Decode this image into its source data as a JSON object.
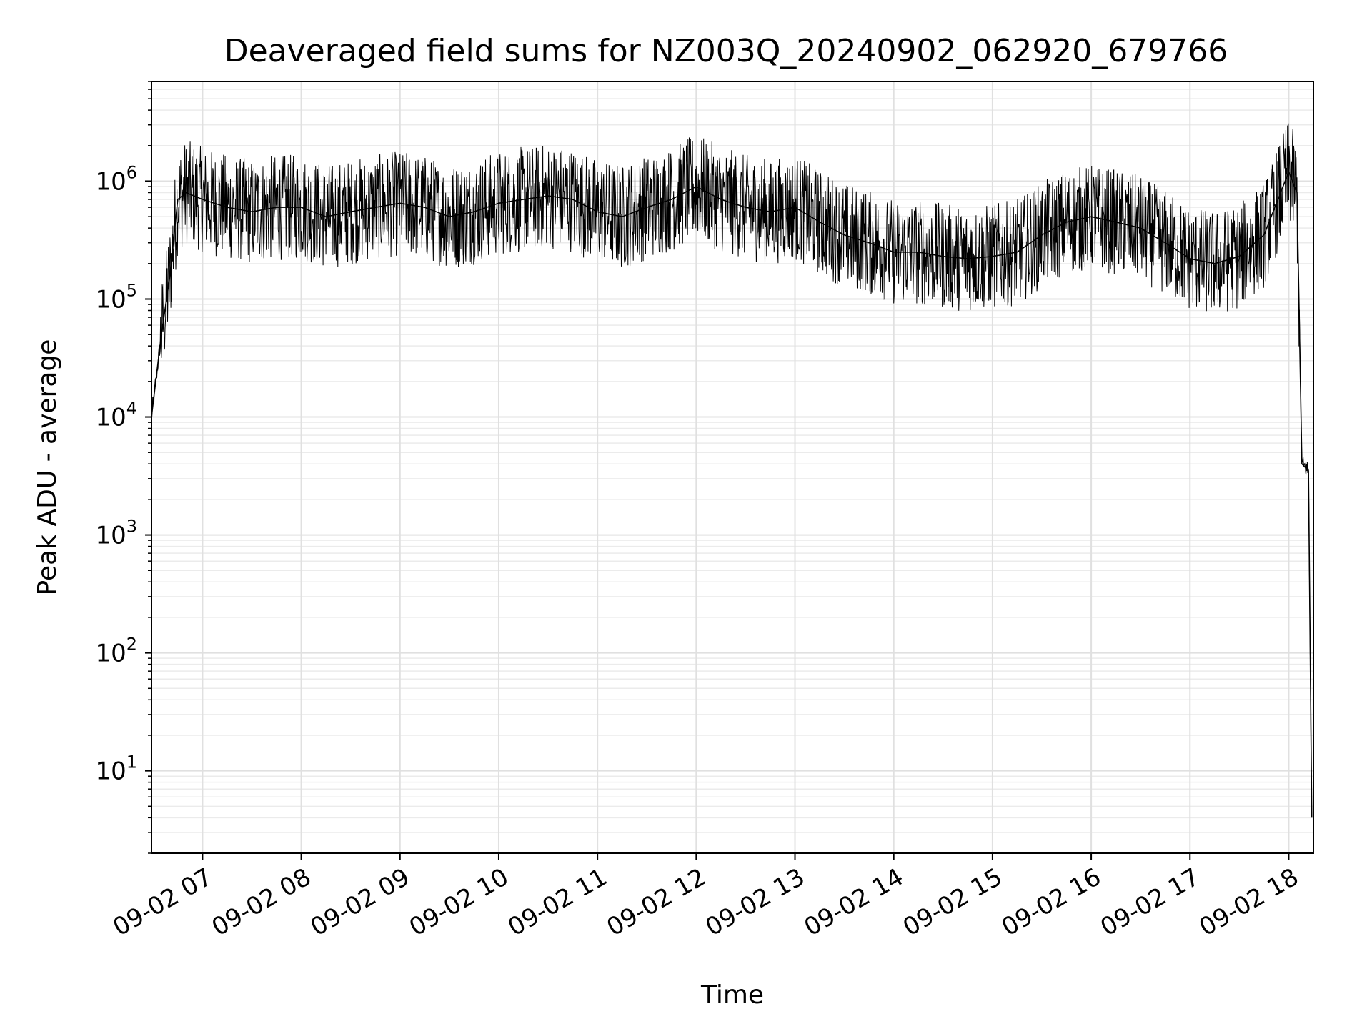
{
  "chart_data": {
    "type": "line",
    "title": "Deaveraged field sums for NZ003Q_20240902_062920_679766",
    "xlabel": "Time",
    "ylabel": "Peak ADU - average",
    "y_scale": "log",
    "ylim": [
      2,
      7000000
    ],
    "xlim": [
      "09-02 06:29",
      "09-02 18:15"
    ],
    "grid": "major and minor, light gray",
    "legend": "none",
    "line_color": "#000000",
    "x_ticks": [
      "09-02 07",
      "09-02 08",
      "09-02 09",
      "09-02 10",
      "09-02 11",
      "09-02 12",
      "09-02 13",
      "09-02 14",
      "09-02 15",
      "09-02 16",
      "09-02 17",
      "09-02 18"
    ],
    "y_ticks": [
      {
        "base": "10",
        "exp": "1",
        "value": 10
      },
      {
        "base": "10",
        "exp": "2",
        "value": 100
      },
      {
        "base": "10",
        "exp": "3",
        "value": 1000
      },
      {
        "base": "10",
        "exp": "4",
        "value": 10000
      },
      {
        "base": "10",
        "exp": "5",
        "value": 100000
      },
      {
        "base": "10",
        "exp": "6",
        "value": 1000000
      }
    ],
    "series": [
      {
        "x": [
          "09-02 06:29",
          "09-02 06:35",
          "09-02 06:40",
          "09-02 06:45",
          "09-02 06:50",
          "09-02 07:00",
          "09-02 07:15",
          "09-02 07:30",
          "09-02 07:45",
          "09-02 08:00",
          "09-02 08:15",
          "09-02 08:30",
          "09-02 08:45",
          "09-02 09:00",
          "09-02 09:15",
          "09-02 09:30",
          "09-02 09:45",
          "09-02 10:00",
          "09-02 10:15",
          "09-02 10:30",
          "09-02 10:45",
          "09-02 11:00",
          "09-02 11:15",
          "09-02 11:30",
          "09-02 11:45",
          "09-02 12:00",
          "09-02 12:15",
          "09-02 12:30",
          "09-02 12:45",
          "09-02 13:00",
          "09-02 13:15",
          "09-02 13:30",
          "09-02 13:45",
          "09-02 14:00",
          "09-02 14:15",
          "09-02 14:30",
          "09-02 14:45",
          "09-02 15:00",
          "09-02 15:15",
          "09-02 15:30",
          "09-02 15:45",
          "09-02 16:00",
          "09-02 16:15",
          "09-02 16:30",
          "09-02 16:45",
          "09-02 17:00",
          "09-02 17:15",
          "09-02 17:30",
          "09-02 17:45",
          "09-02 18:00",
          "09-02 18:05",
          "09-02 18:08",
          "09-02 18:12",
          "09-02 18:14"
        ],
        "values": [
          10000,
          50000,
          150000,
          700000,
          800000,
          700000,
          600000,
          550000,
          600000,
          600000,
          500000,
          550000,
          600000,
          650000,
          600000,
          500000,
          550000,
          650000,
          700000,
          750000,
          700000,
          550000,
          500000,
          600000,
          700000,
          900000,
          700000,
          600000,
          550000,
          600000,
          450000,
          350000,
          300000,
          250000,
          250000,
          230000,
          220000,
          230000,
          250000,
          350000,
          450000,
          500000,
          450000,
          400000,
          300000,
          220000,
          200000,
          230000,
          350000,
          1200000,
          800000,
          4000,
          3500,
          4
        ]
      }
    ]
  }
}
